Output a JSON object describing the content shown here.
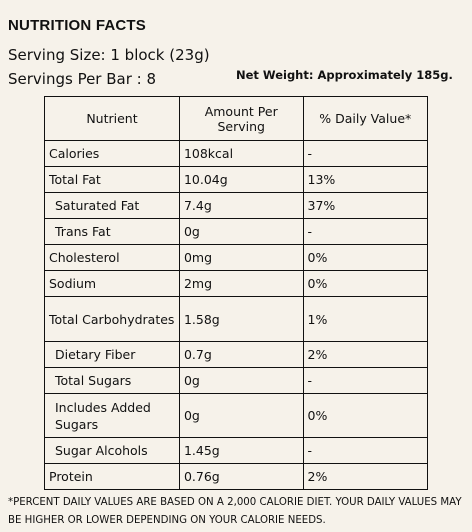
{
  "header": {
    "title": "NUTRITION FACTS",
    "serving_size": "Serving Size: 1 block (23g)",
    "servings_per_bar": "Servings Per Bar : 8",
    "net_weight": "Net Weight: Approximately 185g."
  },
  "table": {
    "headers": [
      "Nutrient",
      "Amount Per Serving",
      "% Daily Value*"
    ],
    "rows": [
      {
        "nutrient": "Calories",
        "amount": "108kcal",
        "dv": "-"
      },
      {
        "nutrient": "Total Fat",
        "amount": "10.04g",
        "dv": "13%"
      },
      {
        "nutrient": "Saturated Fat",
        "amount": "7.4g",
        "dv": "37%"
      },
      {
        "nutrient": "Trans Fat",
        "amount": "0g",
        "dv": "-"
      },
      {
        "nutrient": "Cholesterol",
        "amount": "0mg",
        "dv": "0%"
      },
      {
        "nutrient": "Sodium",
        "amount": "2mg",
        "dv": "0%"
      },
      {
        "nutrient": "Total Carbohydrates",
        "amount": "1.58g",
        "dv": "1%"
      },
      {
        "nutrient": "Dietary Fiber",
        "amount": "0.7g",
        "dv": "2%"
      },
      {
        "nutrient": "Total Sugars",
        "amount": "0g",
        "dv": "-"
      },
      {
        "nutrient": "Includes Added Sugars",
        "amount": "0g",
        "dv": "0%"
      },
      {
        "nutrient": "Sugar Alcohols",
        "amount": "1.45g",
        "dv": "-"
      },
      {
        "nutrient": "Protein",
        "amount": "0.76g",
        "dv": "2%"
      }
    ]
  },
  "footnote": "*PERCENT DAILY VALUES ARE BASED ON A 2,000 CALORIE DIET. YOUR DAILY VALUES MAY BE HIGHER OR LOWER DEPENDING ON YOUR CALORIE NEEDS."
}
